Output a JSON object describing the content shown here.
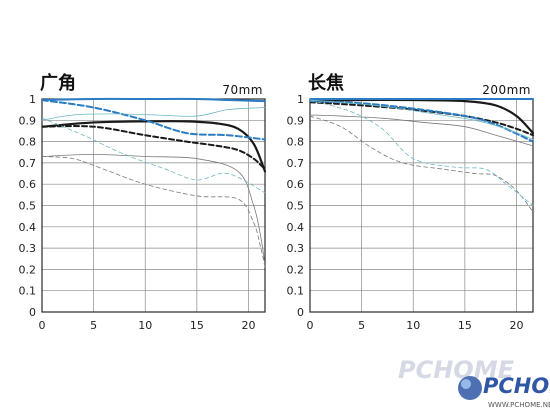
{
  "watermark": {
    "text": "PCHOME",
    "sub": "WWW.PCHOME.NET",
    "color": "#2f57a5"
  },
  "chart_data": [
    {
      "type": "line",
      "title": "广角",
      "subtitle": "70mm",
      "xlim": [
        0,
        21.6
      ],
      "ylim": [
        0,
        1
      ],
      "xticks": [
        0,
        5,
        10,
        15,
        20
      ],
      "yticks": [
        0,
        0.1,
        0.2,
        0.3,
        0.4,
        0.5,
        0.6,
        0.7,
        0.8,
        0.9,
        1
      ],
      "ytick_labels": [
        "0",
        "0.1",
        "0.2",
        "0.3",
        "0.4",
        "0.5",
        "0.6",
        "0.7",
        "0.8",
        "0.9",
        "1"
      ],
      "grid": true,
      "series": [
        {
          "color": "#1a1a1a",
          "width": 2.2,
          "dash": "",
          "x": [
            0,
            5,
            10,
            14,
            17,
            19,
            20.5,
            21.6
          ],
          "y": [
            0.87,
            0.89,
            0.895,
            0.895,
            0.885,
            0.86,
            0.79,
            0.66
          ]
        },
        {
          "color": "#1a1a1a",
          "width": 2.0,
          "dash": "5,3",
          "x": [
            0,
            5,
            10,
            14,
            17,
            19,
            20.5,
            21.6
          ],
          "y": [
            0.87,
            0.87,
            0.83,
            0.8,
            0.78,
            0.76,
            0.72,
            0.67
          ]
        },
        {
          "color": "#2a7cc4",
          "width": 2.0,
          "dash": "",
          "x": [
            0,
            5,
            10,
            15,
            18,
            21.6
          ],
          "y": [
            0.995,
            1.0,
            1.0,
            1.0,
            0.995,
            0.99
          ]
        },
        {
          "color": "#2a7cc4",
          "width": 2.0,
          "dash": "6,3",
          "x": [
            0,
            5,
            10,
            14,
            18,
            21.6
          ],
          "y": [
            0.995,
            0.96,
            0.9,
            0.84,
            0.83,
            0.81
          ]
        },
        {
          "color": "#7a7a7a",
          "width": 0.8,
          "dash": "",
          "x": [
            0,
            5,
            10,
            15,
            19,
            20.5,
            21.2,
            21.6
          ],
          "y": [
            0.73,
            0.74,
            0.73,
            0.72,
            0.66,
            0.5,
            0.35,
            0.22
          ]
        },
        {
          "color": "#7a7a7a",
          "width": 0.8,
          "dash": "4,3",
          "x": [
            0,
            3,
            6,
            10,
            15,
            19,
            20.5,
            21.2,
            21.6
          ],
          "y": [
            0.73,
            0.72,
            0.67,
            0.6,
            0.545,
            0.53,
            0.42,
            0.3,
            0.21
          ]
        },
        {
          "color": "#6fb8c6",
          "width": 0.8,
          "dash": "",
          "x": [
            0,
            3,
            7,
            11,
            15,
            18,
            21.6
          ],
          "y": [
            0.9,
            0.925,
            0.93,
            0.925,
            0.92,
            0.95,
            0.96
          ]
        },
        {
          "color": "#6fb8c6",
          "width": 0.8,
          "dash": "4,3",
          "x": [
            0,
            4,
            8,
            12,
            15,
            18,
            21.6
          ],
          "y": [
            0.91,
            0.83,
            0.74,
            0.67,
            0.62,
            0.65,
            0.56
          ]
        }
      ]
    },
    {
      "type": "line",
      "title": "长焦",
      "subtitle": "200mm",
      "xlim": [
        0,
        21.6
      ],
      "ylim": [
        0,
        1
      ],
      "xticks": [
        0,
        5,
        10,
        15,
        20
      ],
      "yticks": [
        0,
        0.1,
        0.2,
        0.3,
        0.4,
        0.5,
        0.6,
        0.7,
        0.8,
        0.9,
        1
      ],
      "ytick_labels": [
        "0",
        "0.1",
        "0.2",
        "0.3",
        "0.4",
        "0.5",
        "0.6",
        "0.7",
        "0.8",
        "0.9",
        "1"
      ],
      "grid": true,
      "series": [
        {
          "color": "#1a1a1a",
          "width": 2.2,
          "dash": "",
          "x": [
            0,
            5,
            10,
            15,
            18,
            20,
            21.6
          ],
          "y": [
            0.99,
            0.995,
            0.995,
            0.99,
            0.97,
            0.92,
            0.84
          ]
        },
        {
          "color": "#1a1a1a",
          "width": 2.0,
          "dash": "5,3",
          "x": [
            0,
            5,
            10,
            15,
            18,
            20,
            21.6
          ],
          "y": [
            0.985,
            0.97,
            0.95,
            0.92,
            0.89,
            0.86,
            0.83
          ]
        },
        {
          "color": "#2a7cc4",
          "width": 2.0,
          "dash": "",
          "x": [
            0,
            5,
            10,
            15,
            20,
            21.6
          ],
          "y": [
            1.0,
            1.0,
            1.0,
            1.0,
            1.0,
            1.0
          ]
        },
        {
          "color": "#2a7cc4",
          "width": 2.0,
          "dash": "6,3",
          "x": [
            0,
            5,
            10,
            15,
            18,
            21.6
          ],
          "y": [
            0.99,
            0.98,
            0.955,
            0.92,
            0.88,
            0.8
          ]
        },
        {
          "color": "#7a7a7a",
          "width": 0.8,
          "dash": "",
          "x": [
            0,
            3,
            7,
            11,
            15,
            18,
            21.6
          ],
          "y": [
            0.925,
            0.92,
            0.91,
            0.89,
            0.87,
            0.83,
            0.78
          ]
        },
        {
          "color": "#7a7a7a",
          "width": 0.8,
          "dash": "4,3",
          "x": [
            0,
            3,
            6,
            9,
            13,
            16,
            18,
            20,
            21.6
          ],
          "y": [
            0.92,
            0.87,
            0.77,
            0.7,
            0.67,
            0.65,
            0.64,
            0.57,
            0.47
          ]
        },
        {
          "color": "#6fb8c6",
          "width": 0.8,
          "dash": "",
          "x": [
            0,
            4,
            8,
            12,
            16,
            19,
            21.6
          ],
          "y": [
            0.995,
            0.98,
            0.96,
            0.93,
            0.9,
            0.86,
            0.81
          ]
        },
        {
          "color": "#6fb8c6",
          "width": 0.8,
          "dash": "4,3",
          "x": [
            0,
            4,
            7,
            10,
            14,
            17,
            19,
            21.6
          ],
          "y": [
            0.995,
            0.94,
            0.86,
            0.72,
            0.68,
            0.67,
            0.6,
            0.5
          ]
        }
      ]
    }
  ]
}
